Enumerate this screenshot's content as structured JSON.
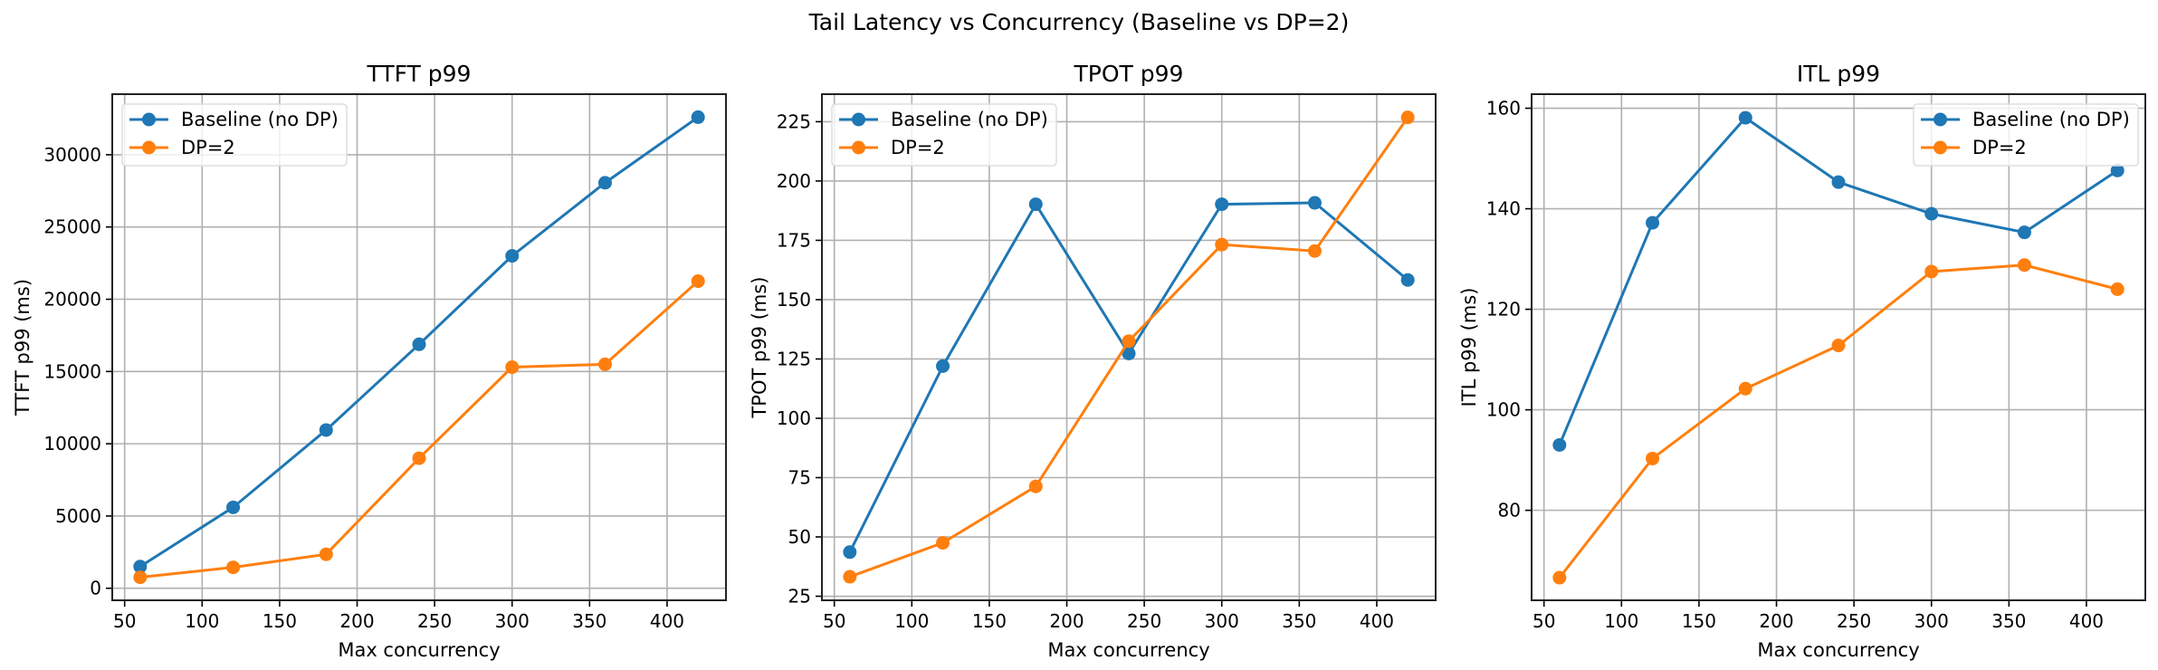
{
  "suptitle": "Tail Latency vs Concurrency (Baseline vs DP=2)",
  "chart_data": [
    {
      "type": "line",
      "title": "TTFT p99",
      "xlabel": "Max concurrency",
      "ylabel": "TTFT p99 (ms)",
      "x": [
        60,
        120,
        180,
        240,
        300,
        360,
        420
      ],
      "xlim": [
        42,
        438
      ],
      "ylim": [
        -832,
        34192
      ],
      "xticks": [
        50,
        100,
        150,
        200,
        250,
        300,
        350,
        400
      ],
      "yticks": [
        0,
        5000,
        10000,
        15000,
        20000,
        25000,
        30000
      ],
      "grid": true,
      "legend": "upper-left",
      "series": [
        {
          "name": "Baseline (no DP)",
          "color": "#1f77b4",
          "values": [
            1500,
            5600,
            10950,
            16880,
            23000,
            28060,
            32600
          ]
        },
        {
          "name": "DP=2",
          "color": "#ff7f0e",
          "values": [
            760,
            1450,
            2350,
            9000,
            15300,
            15500,
            21250
          ]
        }
      ]
    },
    {
      "type": "line",
      "title": "TPOT p99",
      "xlabel": "Max concurrency",
      "ylabel": "TPOT p99 (ms)",
      "x": [
        60,
        120,
        180,
        240,
        300,
        360,
        420
      ],
      "xlim": [
        42,
        438
      ],
      "ylim": [
        23.3,
        236.6
      ],
      "xticks": [
        50,
        100,
        150,
        200,
        250,
        300,
        350,
        400
      ],
      "yticks": [
        25,
        50,
        75,
        100,
        125,
        150,
        175,
        200,
        225
      ],
      "grid": true,
      "legend": "upper-left",
      "series": [
        {
          "name": "Baseline (no DP)",
          "color": "#1f77b4",
          "values": [
            43.6,
            122,
            190.2,
            127.3,
            190.2,
            190.8,
            158.3
          ]
        },
        {
          "name": "DP=2",
          "color": "#ff7f0e",
          "values": [
            33.2,
            47.5,
            71.3,
            132.5,
            173.2,
            170.5,
            226.8
          ]
        }
      ]
    },
    {
      "type": "line",
      "title": "ITL p99",
      "xlabel": "Max concurrency",
      "ylabel": "ITL p99 (ms)",
      "x": [
        60,
        120,
        180,
        240,
        300,
        360,
        420
      ],
      "xlim": [
        42,
        438
      ],
      "ylim": [
        62.1,
        162.8
      ],
      "xticks": [
        50,
        100,
        150,
        200,
        250,
        300,
        350,
        400
      ],
      "yticks": [
        80,
        100,
        120,
        140,
        160
      ],
      "grid": true,
      "legend": "upper-right",
      "series": [
        {
          "name": "Baseline (no DP)",
          "color": "#1f77b4",
          "values": [
            93.0,
            137.2,
            158.1,
            145.3,
            139.0,
            135.3,
            147.6
          ]
        },
        {
          "name": "DP=2",
          "color": "#ff7f0e",
          "values": [
            66.6,
            90.3,
            104.2,
            112.8,
            127.5,
            128.8,
            124.0
          ]
        }
      ]
    }
  ]
}
